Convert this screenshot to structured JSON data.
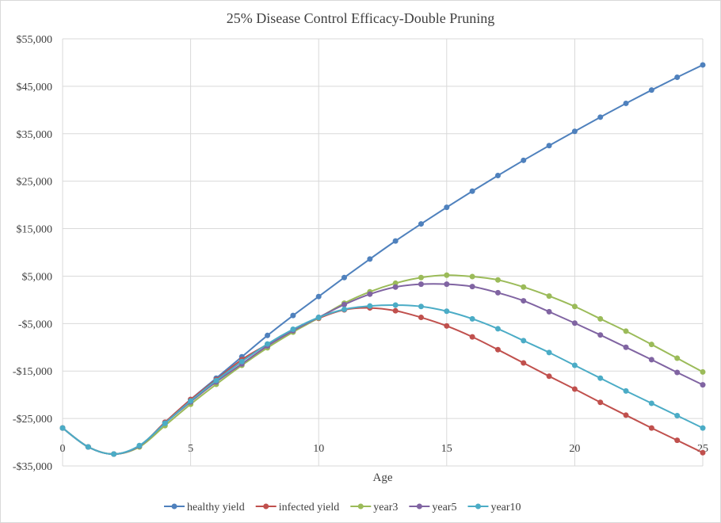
{
  "chart_data": {
    "type": "line",
    "title": "25% Disease Control Efficacy-Double Pruning",
    "xlabel": "Age",
    "ylabel": "",
    "xlim": [
      0,
      25
    ],
    "ylim": [
      -35000,
      55000
    ],
    "x_ticks": [
      0,
      5,
      10,
      15,
      20,
      25
    ],
    "y_ticks": [
      -35000,
      -25000,
      -15000,
      -5000,
      5000,
      15000,
      25000,
      35000,
      45000,
      55000
    ],
    "y_tick_labels": [
      "-$35,000",
      "-$25,000",
      "-$15,000",
      "-$5,000",
      "$5,000",
      "$15,000",
      "$25,000",
      "$35,000",
      "$45,000",
      "$55,000"
    ],
    "grid": true,
    "legend_position": "bottom",
    "x": [
      0,
      1,
      2,
      3,
      4,
      5,
      6,
      7,
      8,
      9,
      10,
      11,
      12,
      13,
      14,
      15,
      16,
      17,
      18,
      19,
      20,
      21,
      22,
      23,
      24,
      25
    ],
    "series": [
      {
        "name": "healthy yield",
        "color": "#4F81BD",
        "values": [
          -27000,
          -31000,
          -32500,
          -30800,
          -25800,
          -21000,
          -16500,
          -12000,
          -7500,
          -3300,
          700,
          4700,
          8600,
          12400,
          16000,
          19500,
          22900,
          26200,
          29400,
          32500,
          35500,
          38500,
          41400,
          44200,
          46900,
          49500
        ]
      },
      {
        "name": "infected yield",
        "color": "#C0504D",
        "values": [
          -27000,
          -31000,
          -32500,
          -30800,
          -25800,
          -21000,
          -16800,
          -12600,
          -9400,
          -6600,
          -3900,
          -2100,
          -1700,
          -2300,
          -3700,
          -5500,
          -7800,
          -10500,
          -13300,
          -16100,
          -18800,
          -21600,
          -24300,
          -27000,
          -29600,
          -32200
        ]
      },
      {
        "name": "year3",
        "color": "#9BBB59",
        "values": [
          -27000,
          -31000,
          -32500,
          -31000,
          -26500,
          -22000,
          -17800,
          -13800,
          -10100,
          -6800,
          -3800,
          -700,
          1700,
          3500,
          4700,
          5200,
          4900,
          4200,
          2700,
          800,
          -1400,
          -4000,
          -6600,
          -9400,
          -12300,
          -15200
        ]
      },
      {
        "name": "year5",
        "color": "#8064A2",
        "values": [
          -27000,
          -31000,
          -32500,
          -30800,
          -26000,
          -21500,
          -17300,
          -13500,
          -9700,
          -6500,
          -3700,
          -1000,
          1200,
          2700,
          3300,
          3300,
          2800,
          1500,
          -200,
          -2500,
          -4900,
          -7400,
          -10000,
          -12600,
          -15300,
          -17900
        ]
      },
      {
        "name": "year10",
        "color": "#4BACC6",
        "values": [
          -27000,
          -31000,
          -32500,
          -30700,
          -26000,
          -21300,
          -17000,
          -13000,
          -9300,
          -6200,
          -3700,
          -2000,
          -1300,
          -1100,
          -1400,
          -2400,
          -4000,
          -6100,
          -8600,
          -11100,
          -13800,
          -16500,
          -19200,
          -21800,
          -24400,
          -27000
        ]
      }
    ]
  }
}
